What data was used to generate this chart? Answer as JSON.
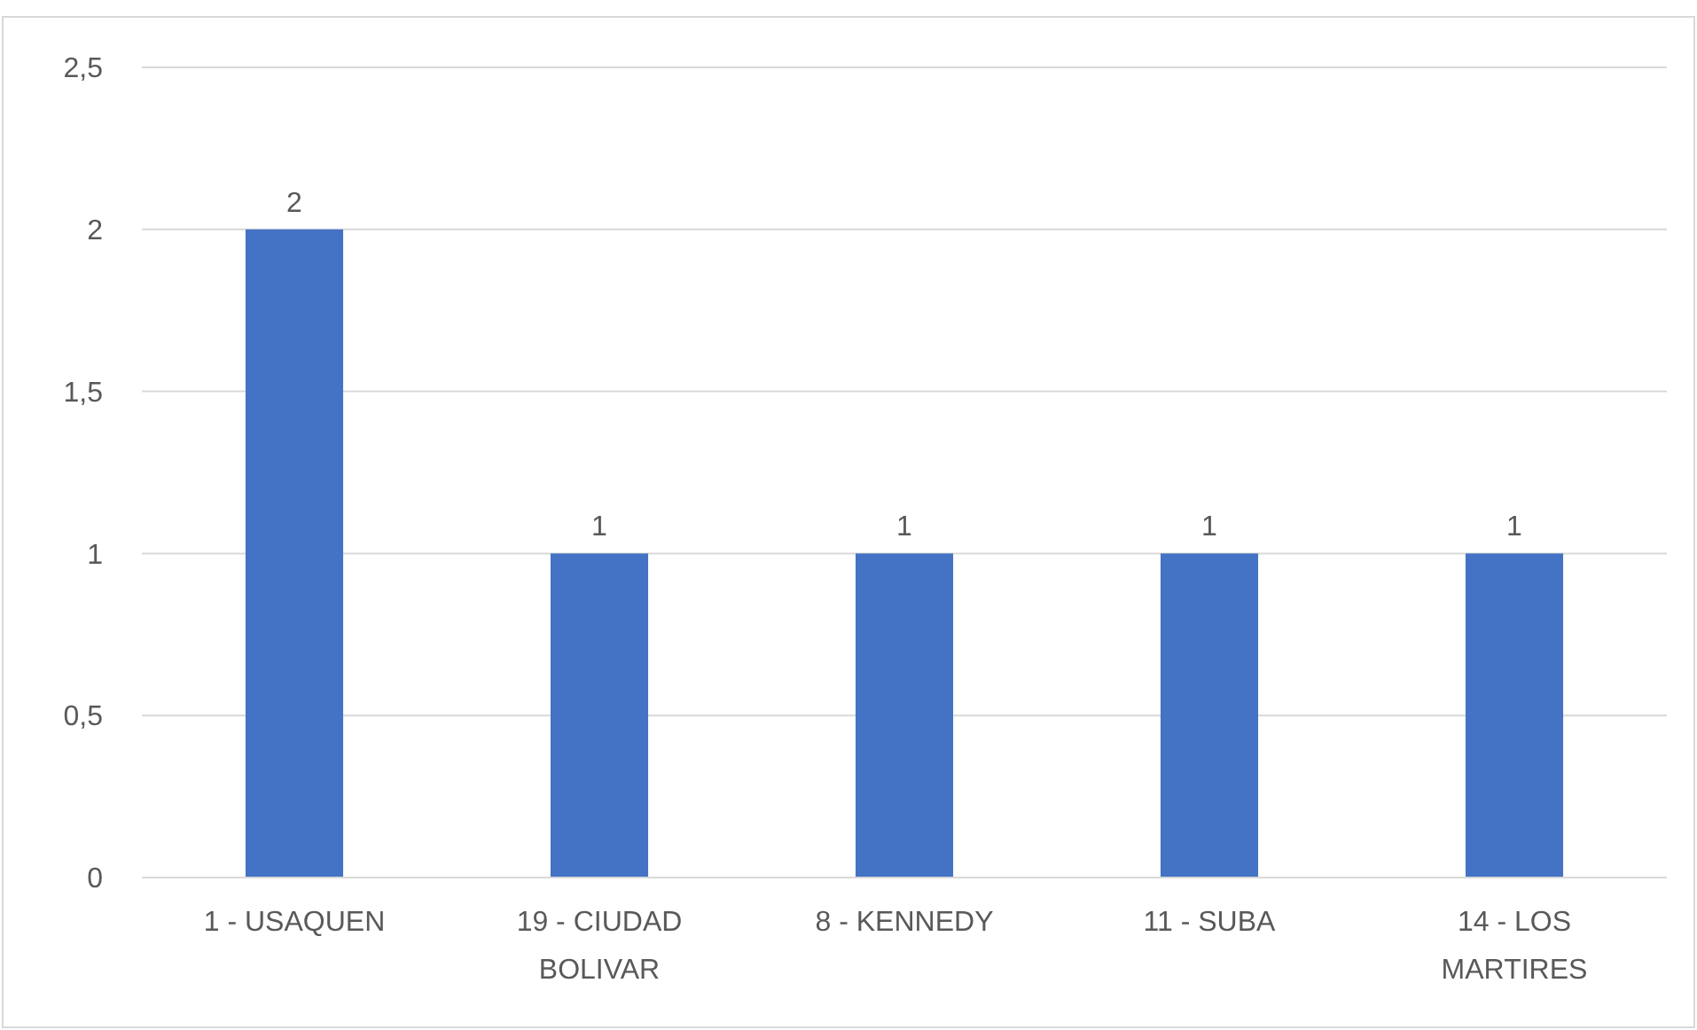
{
  "chart_data": {
    "type": "bar",
    "categories": [
      "1 - USAQUEN",
      "19 - CIUDAD BOLIVAR",
      "8 - KENNEDY",
      "11 - SUBA",
      "14 - LOS MARTIRES"
    ],
    "values": [
      2,
      1,
      1,
      1,
      1
    ],
    "color": "#4472c4",
    "ylim": [
      0,
      2.5
    ],
    "yticks": [
      0,
      {
        "value": 0.5,
        "label": "0,5"
      },
      1,
      {
        "value": 1.5,
        "label": "1,5"
      },
      2,
      {
        "value": 2.5,
        "label": "2,5"
      }
    ],
    "grid": "y",
    "data_labels": true
  }
}
